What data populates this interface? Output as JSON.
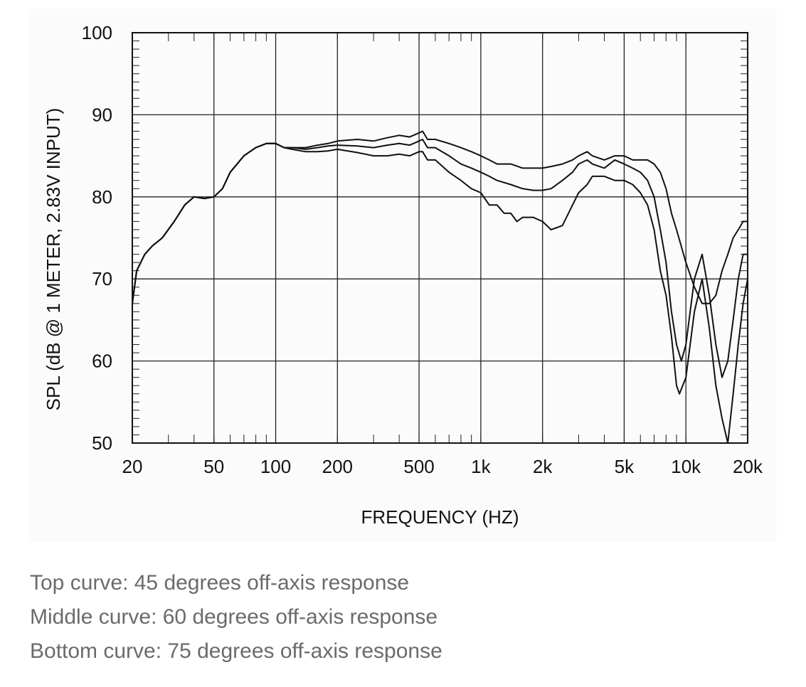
{
  "chart_data": {
    "type": "line",
    "title": "",
    "xlabel": "FREQUENCY  (HZ)",
    "ylabel": "SPL (dB @ 1 METER, 2.83V INPUT)",
    "x_scale": "log",
    "xlim": [
      20,
      20000
    ],
    "ylim": [
      50,
      100
    ],
    "grid": true,
    "x_ticks": [
      {
        "value": 20,
        "label": "20"
      },
      {
        "value": 50,
        "label": "50"
      },
      {
        "value": 100,
        "label": "100"
      },
      {
        "value": 200,
        "label": "200"
      },
      {
        "value": 500,
        "label": "500"
      },
      {
        "value": 1000,
        "label": "1k"
      },
      {
        "value": 2000,
        "label": "2k"
      },
      {
        "value": 5000,
        "label": "5k"
      },
      {
        "value": 10000,
        "label": "10k"
      },
      {
        "value": 20000,
        "label": "20k"
      }
    ],
    "y_ticks": [
      {
        "value": 50,
        "label": "50"
      },
      {
        "value": 60,
        "label": "60"
      },
      {
        "value": 70,
        "label": "70"
      },
      {
        "value": 80,
        "label": "80"
      },
      {
        "value": 90,
        "label": "90"
      },
      {
        "value": 100,
        "label": "100"
      }
    ],
    "series": [
      {
        "x": [
          20,
          21,
          23,
          25,
          28,
          32,
          36,
          40,
          45,
          50,
          55,
          60,
          70,
          80,
          90,
          100,
          110,
          120,
          140,
          160,
          180,
          200,
          250,
          300,
          350,
          400,
          450,
          500,
          520,
          550,
          600,
          700,
          800,
          900,
          1000,
          1100,
          1200,
          1400,
          1600,
          1800,
          2000,
          2200,
          2500,
          2800,
          3000,
          3300,
          3500,
          4000,
          4500,
          5000,
          5500,
          6000,
          6500,
          7000,
          7500,
          8000,
          8500,
          9000,
          10000,
          11000,
          12000,
          13000,
          14000,
          15000,
          16000,
          17000,
          18000,
          19000,
          20000
        ],
        "y": [
          67,
          71,
          73,
          74,
          75,
          77,
          79,
          80,
          79.8,
          80,
          81,
          83,
          85,
          86,
          86.5,
          86.5,
          86,
          86,
          86,
          86.3,
          86.5,
          86.8,
          87,
          86.8,
          87.2,
          87.5,
          87.3,
          87.8,
          88,
          87,
          87,
          86.5,
          86,
          85.5,
          85,
          84.5,
          84,
          84,
          83.5,
          83.5,
          83.5,
          83.7,
          84,
          84.5,
          85,
          85.5,
          85,
          84.5,
          85,
          85,
          84.5,
          84.5,
          84.5,
          84,
          83,
          81,
          78,
          76,
          72,
          69,
          67,
          67,
          68,
          71,
          73,
          75,
          76,
          77,
          77
        ]
      },
      {
        "x": [
          20,
          21,
          23,
          25,
          28,
          32,
          36,
          40,
          45,
          50,
          55,
          60,
          70,
          80,
          90,
          100,
          110,
          120,
          140,
          160,
          180,
          200,
          250,
          300,
          350,
          400,
          450,
          500,
          520,
          550,
          600,
          700,
          800,
          900,
          1000,
          1100,
          1200,
          1400,
          1600,
          1800,
          2000,
          2200,
          2500,
          2800,
          3000,
          3300,
          3500,
          4000,
          4500,
          5000,
          5500,
          6000,
          6500,
          7000,
          7500,
          8000,
          8500,
          9000,
          9500,
          10000,
          11000,
          12000,
          13000,
          14000,
          15000,
          16000,
          17000,
          18000,
          19000,
          20000
        ],
        "y": [
          67,
          71,
          73,
          74,
          75,
          77,
          79,
          80,
          79.8,
          80,
          81,
          83,
          85,
          86,
          86.5,
          86.5,
          86,
          86,
          85.8,
          86,
          86.2,
          86.3,
          86.2,
          86,
          86.3,
          86.5,
          86.3,
          86.8,
          87,
          86,
          86,
          85,
          84,
          83.5,
          83,
          82.5,
          82,
          81.5,
          81,
          80.8,
          80.8,
          81,
          82,
          83,
          84,
          84.5,
          84,
          83.5,
          84.5,
          84,
          83.5,
          83,
          82,
          80,
          76,
          72,
          66,
          62,
          60,
          62,
          70,
          73,
          68,
          62,
          58,
          60,
          65,
          70,
          73,
          73
        ]
      },
      {
        "x": [
          20,
          21,
          23,
          25,
          28,
          32,
          36,
          40,
          45,
          50,
          55,
          60,
          70,
          80,
          90,
          100,
          110,
          120,
          140,
          160,
          180,
          200,
          250,
          300,
          350,
          400,
          450,
          500,
          520,
          550,
          600,
          700,
          800,
          900,
          1000,
          1100,
          1200,
          1300,
          1400,
          1500,
          1600,
          1800,
          2000,
          2200,
          2500,
          2800,
          3000,
          3300,
          3500,
          4000,
          4500,
          5000,
          5500,
          6000,
          6500,
          7000,
          7500,
          8000,
          8500,
          9000,
          9300,
          10000,
          11000,
          12000,
          13000,
          14000,
          15000,
          16000,
          17000,
          18000,
          19000,
          20000
        ],
        "y": [
          67,
          71,
          73,
          74,
          75,
          77,
          79,
          80,
          79.8,
          80,
          81,
          83,
          85,
          86,
          86.5,
          86.5,
          86,
          85.8,
          85.5,
          85.5,
          85.6,
          85.8,
          85.4,
          85,
          85,
          85.2,
          85,
          85.5,
          85.5,
          84.5,
          84.5,
          83,
          82,
          81,
          80.5,
          79,
          79,
          78,
          78,
          77,
          77.5,
          77.5,
          77,
          76,
          76.5,
          79,
          80.5,
          81.5,
          82.5,
          82.5,
          82,
          82,
          81.5,
          80.5,
          79,
          76,
          71,
          68,
          63,
          57,
          56,
          58,
          66,
          70,
          64,
          57,
          53,
          50,
          56,
          62,
          67,
          70
        ]
      }
    ]
  },
  "captions": [
    "Top curve: 45 degrees off-axis response",
    "Middle curve: 60 degrees off-axis response",
    "Bottom curve: 75 degrees off-axis response"
  ],
  "colors": {
    "line": "#111111",
    "grid": "#222222",
    "caption": "#6b6b6b",
    "figure_bg": "#fbfbfb"
  }
}
